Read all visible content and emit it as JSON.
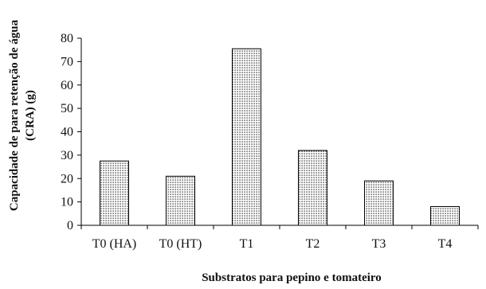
{
  "chart_data": {
    "type": "bar",
    "title": "",
    "xlabel": "Substratos para pepino e tomateiro",
    "ylabel_line1": "Capacidade de para retenção de água",
    "ylabel_line2": "(CRA) (g)",
    "categories": [
      "T0 (HA)",
      "T0 (HT)",
      "T1",
      "T2",
      "T3",
      "T4"
    ],
    "values": [
      27.5,
      21,
      75.5,
      32,
      19,
      8
    ],
    "ylim": [
      0,
      80
    ],
    "yticks": [
      0,
      10,
      20,
      30,
      40,
      50,
      60,
      70,
      80
    ],
    "grid": false,
    "legend": "none",
    "bar_fill": "dotted-gray",
    "colors": {
      "bar_stroke": "#000000",
      "bar_dots": "#000000",
      "axis": "#000000"
    }
  }
}
